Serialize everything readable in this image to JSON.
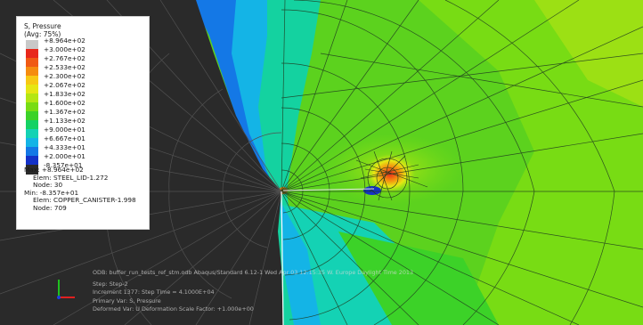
{
  "legend": {
    "title_line1": "S, Pressure",
    "title_line2": "(Avg: 75%)",
    "labels": [
      "+8.964e+02",
      "+3.000e+02",
      "+2.767e+02",
      "+2.533e+02",
      "+2.300e+02",
      "+2.067e+02",
      "+1.833e+02",
      "+1.600e+02",
      "+1.367e+02",
      "+1.133e+02",
      "+9.000e+01",
      "+6.667e+01",
      "+4.333e+01",
      "+2.000e+01",
      "-8.357e+01"
    ],
    "colors": [
      "#c8c8c8",
      "#e8281c",
      "#f05a14",
      "#f58c0f",
      "#f7c814",
      "#e6e614",
      "#b4e614",
      "#78dc14",
      "#3cd228",
      "#14d264",
      "#14d2b4",
      "#14b4e6",
      "#1478e6",
      "#1432c8",
      "#2a2a2a"
    ],
    "max_line": "Max: +8.964e+02",
    "max_elem": "Elem: STEEL_LID-1.272",
    "max_node": "Node: 30",
    "min_line": "Min: -8.357e+01",
    "min_elem": "Elem: COPPER_CANISTER-1.998",
    "min_node": "Node: 709"
  },
  "status": {
    "line0": "ODB: buffer_run_tests_ref_stm.odb    Abaqus/Standard 6.12-1    Wed Apr 03 12:15:35 W. Europe Daylight Time 2013",
    "line1": "Step: Step-2",
    "line2": "Increment   1377: Step Time =    4.1000E+04",
    "line3": "Primary Var: S, Pressure",
    "line4": "Deformed Var: U   Deformation Scale Factor: +1.000e+00"
  },
  "triad": {
    "x_color": "#e02020",
    "y_color": "#20c020",
    "z_color": "#2040e0"
  }
}
